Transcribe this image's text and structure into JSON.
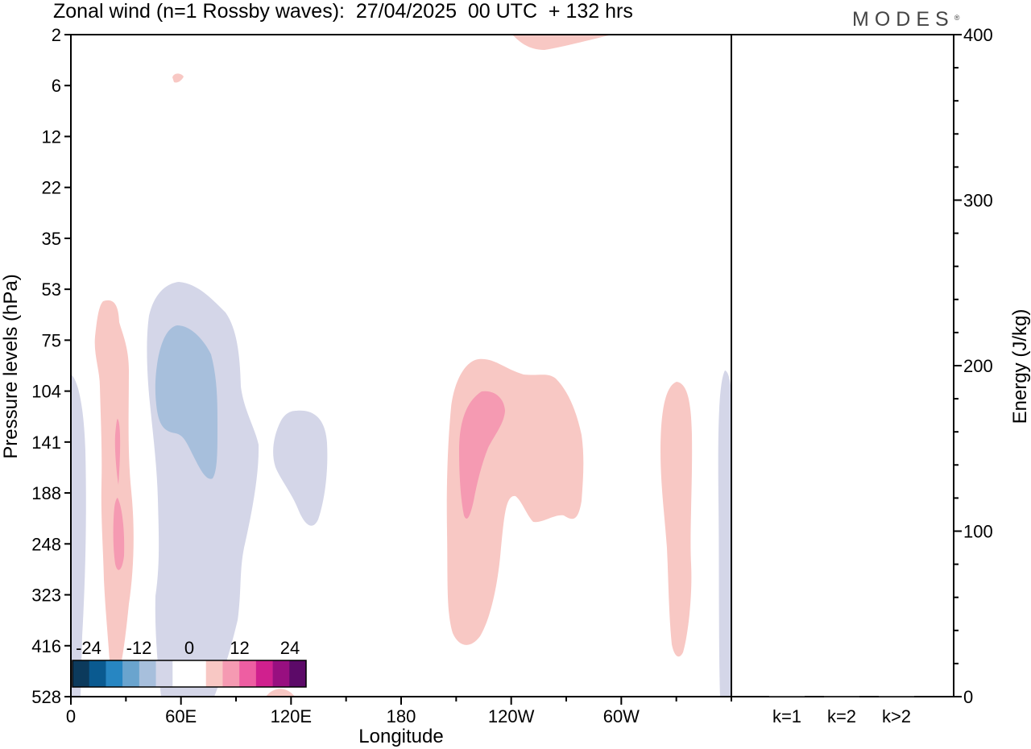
{
  "title": "Zonal wind (n=1 Rossby waves):  27/04/2025  00 UTC  + 132 hrs",
  "logo": "MODES",
  "logo_mark": "®",
  "chart_data": [
    {
      "type": "contour",
      "xlabel": "Longitude",
      "ylabel": "Pressure levels (hPa)",
      "x_ticks": [
        "0",
        "60E",
        "120E",
        "180",
        "120W",
        "60W"
      ],
      "y_ticks": [
        "2",
        "6",
        "12",
        "22",
        "35",
        "53",
        "75",
        "104",
        "141",
        "188",
        "248",
        "323",
        "416",
        "528"
      ],
      "y_scale": "inverted (pressure levels)",
      "colorbar": {
        "labels": [
          "-24",
          "-12",
          "0",
          "12",
          "24"
        ],
        "colors": [
          "#0c3a5c",
          "#0a5a90",
          "#2786c2",
          "#6aa4ce",
          "#a7bfdc",
          "#d4d6e8",
          "#ffffff",
          "#ffffff",
          "#f8c8c4",
          "#f59ab2",
          "#ee5ea2",
          "#d0208e",
          "#980f80",
          "#5c0a68"
        ]
      },
      "regions": [
        {
          "sign": "negative",
          "level": "weak",
          "lon_range": [
            "0",
            "5E"
          ],
          "p_range": [
            "104",
            "528"
          ]
        },
        {
          "sign": "positive",
          "level": "weak",
          "lon_range": [
            "15E",
            "35E"
          ],
          "p_range": [
            "53",
            "416"
          ]
        },
        {
          "sign": "positive",
          "level": "moderate",
          "lon_range": [
            "20E",
            "30E"
          ],
          "p_range": [
            "141",
            "323"
          ]
        },
        {
          "sign": "negative",
          "level": "weak",
          "lon_range": [
            "40E",
            "100E"
          ],
          "p_range": [
            "53",
            "528"
          ]
        },
        {
          "sign": "negative",
          "level": "moderate",
          "lon_range": [
            "45E",
            "80E"
          ],
          "p_range": [
            "75",
            "188"
          ]
        },
        {
          "sign": "negative",
          "level": "weak",
          "lon_range": [
            "110E",
            "140E"
          ],
          "p_range": [
            "104",
            "248"
          ]
        },
        {
          "sign": "positive",
          "level": "weak",
          "lon_range": [
            "150W",
            "70W"
          ],
          "p_range": [
            "104",
            "416"
          ]
        },
        {
          "sign": "positive",
          "level": "moderate",
          "lon_range": [
            "145W",
            "125W"
          ],
          "p_range": [
            "104",
            "248"
          ]
        },
        {
          "sign": "positive",
          "level": "weak",
          "lon_range": [
            "50W",
            "35W"
          ],
          "p_range": [
            "104",
            "416"
          ]
        },
        {
          "sign": "positive",
          "level": "weak",
          "lon_range": [
            "60E",
            "60E"
          ],
          "p_range": [
            "6",
            "6"
          ]
        },
        {
          "sign": "positive",
          "level": "weak",
          "lon_range": [
            "140W",
            "110W"
          ],
          "p_range": [
            "2",
            "2"
          ]
        },
        {
          "sign": "negative",
          "level": "weak",
          "lon_range": [
            "0",
            "0"
          ],
          "p_range": [
            "104",
            "528"
          ]
        }
      ]
    },
    {
      "type": "bar",
      "ylabel": "Energy (J/kg)",
      "categories": [
        "k=1",
        "k=2",
        "k>2"
      ],
      "values": [
        0.5,
        0.3,
        0.4
      ],
      "ylim": [
        0,
        400
      ],
      "y_ticks": [
        "0",
        "100",
        "200",
        "300",
        "400"
      ]
    }
  ]
}
